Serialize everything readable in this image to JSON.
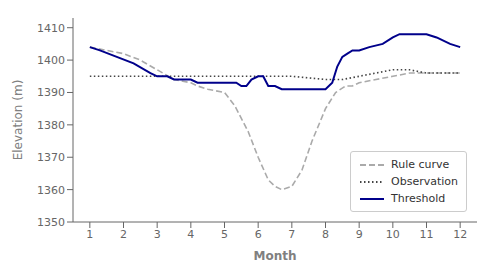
{
  "chart_data": {
    "type": "line",
    "xlabel": "Month",
    "ylabel": "Elevation (m)",
    "xlim": [
      0.5,
      12.5
    ],
    "ylim": [
      1350,
      1413
    ],
    "xticks": [
      1,
      2,
      3,
      4,
      5,
      6,
      7,
      8,
      9,
      10,
      11,
      12
    ],
    "yticks": [
      1350,
      1360,
      1370,
      1380,
      1390,
      1400,
      1410
    ],
    "grid": false,
    "legend": "lower right",
    "series": [
      {
        "name": "Rule curve",
        "color": "#aaaaaa",
        "line_style": "dashed",
        "x": [
          1,
          1.5,
          2,
          2.5,
          3,
          3.5,
          4,
          4.2,
          4.5,
          5,
          5.3,
          5.7,
          6,
          6.3,
          6.5,
          6.7,
          7,
          7.3,
          7.6,
          8,
          8.3,
          8.6,
          8.8,
          9,
          9.5,
          10,
          10.5,
          11,
          11.5,
          12
        ],
        "values": [
          1404,
          1403,
          1402,
          1400,
          1397,
          1394,
          1393,
          1392,
          1391,
          1390,
          1386,
          1378,
          1370,
          1363,
          1361,
          1360,
          1361,
          1366,
          1375,
          1385,
          1390,
          1392,
          1392,
          1393,
          1394,
          1395,
          1396,
          1396,
          1396,
          1396
        ]
      },
      {
        "name": "Observation",
        "color": "#444444",
        "line_style": "dotted",
        "x": [
          1,
          2,
          3,
          4,
          5,
          6,
          7,
          8,
          8.5,
          9,
          9.5,
          10,
          10.5,
          11,
          11.5,
          12
        ],
        "values": [
          1395,
          1395,
          1395,
          1395,
          1395,
          1395,
          1395,
          1394,
          1394,
          1395,
          1396,
          1397,
          1397,
          1396,
          1396,
          1396
        ]
      },
      {
        "name": "Threshold",
        "color": "#00008B",
        "line_style": "solid",
        "x": [
          1,
          1.3,
          1.8,
          2.3,
          2.8,
          3,
          3.3,
          3.5,
          3.7,
          4,
          4.2,
          4.4,
          4.6,
          4.8,
          5,
          5.2,
          5.35,
          5.5,
          5.65,
          5.8,
          6.0,
          6.15,
          6.3,
          6.5,
          6.7,
          7.0,
          7.3,
          7.6,
          8.0,
          8.2,
          8.35,
          8.5,
          8.65,
          8.8,
          9.0,
          9.3,
          9.7,
          10.0,
          10.2,
          10.4,
          10.6,
          10.8,
          11.0,
          11.3,
          11.7,
          12.0
        ],
        "values": [
          1404,
          1403,
          1401,
          1399,
          1396,
          1395,
          1395,
          1394,
          1394,
          1394,
          1393,
          1393,
          1393,
          1393,
          1393,
          1393,
          1393,
          1392,
          1392,
          1394,
          1395,
          1395,
          1392,
          1392,
          1391,
          1391,
          1391,
          1391,
          1391,
          1393,
          1398,
          1401,
          1402,
          1403,
          1403,
          1404,
          1405,
          1407,
          1408,
          1408,
          1408,
          1408,
          1408,
          1407,
          1405,
          1404
        ]
      }
    ]
  }
}
